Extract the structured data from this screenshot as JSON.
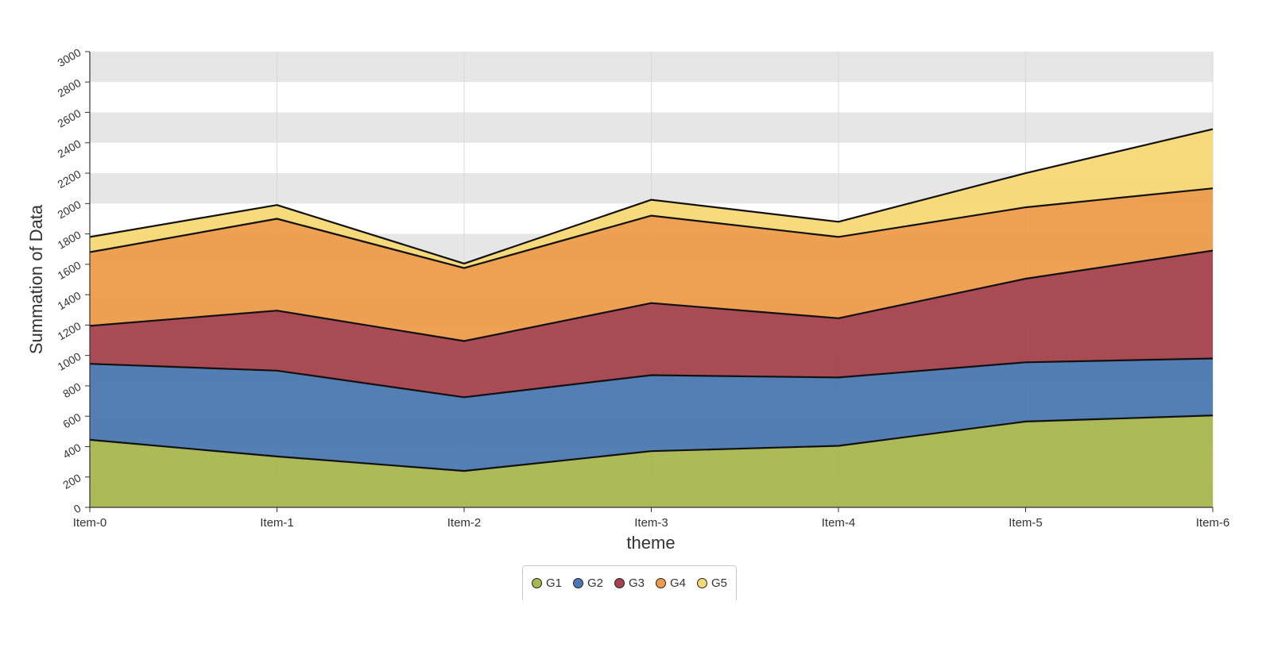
{
  "chart_data": {
    "type": "area",
    "stacked": true,
    "xlabel": "theme",
    "ylabel": "Summation of Data",
    "ylim": [
      0,
      3000
    ],
    "y_ticks": [
      0,
      200,
      400,
      600,
      800,
      1000,
      1200,
      1400,
      1600,
      1800,
      2000,
      2200,
      2400,
      2600,
      2800,
      3000
    ],
    "categories": [
      "Item-0",
      "Item-1",
      "Item-2",
      "Item-3",
      "Item-4",
      "Item-5",
      "Item-6"
    ],
    "series": [
      {
        "name": "G1",
        "color": "#a8b74e",
        "values": [
          445,
          335,
          240,
          370,
          405,
          565,
          605
        ]
      },
      {
        "name": "G2",
        "color": "#4a78b0",
        "values": [
          500,
          565,
          485,
          500,
          450,
          390,
          375
        ]
      },
      {
        "name": "G3",
        "color": "#a5424c",
        "values": [
          250,
          395,
          370,
          475,
          390,
          550,
          710
        ]
      },
      {
        "name": "G4",
        "color": "#ee9c4a",
        "values": [
          485,
          605,
          480,
          575,
          535,
          470,
          410
        ]
      },
      {
        "name": "G5",
        "color": "#f6d874",
        "values": [
          100,
          90,
          30,
          105,
          100,
          225,
          390
        ]
      }
    ],
    "grid": "alternating horizontal bands",
    "legend_position": "bottom-center"
  }
}
